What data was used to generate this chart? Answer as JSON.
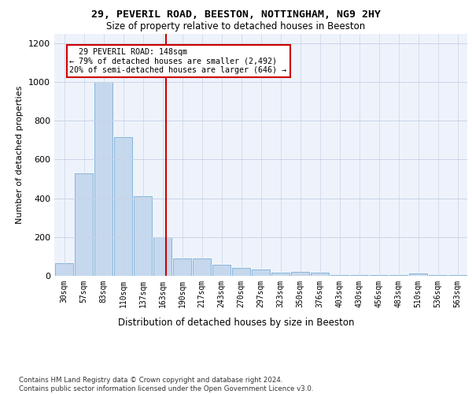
{
  "title_line1": "29, PEVERIL ROAD, BEESTON, NOTTINGHAM, NG9 2HY",
  "title_line2": "Size of property relative to detached houses in Beeston",
  "xlabel": "Distribution of detached houses by size in Beeston",
  "ylabel": "Number of detached properties",
  "footer": "Contains HM Land Registry data © Crown copyright and database right 2024.\nContains public sector information licensed under the Open Government Licence v3.0.",
  "categories": [
    "30sqm",
    "57sqm",
    "83sqm",
    "110sqm",
    "137sqm",
    "163sqm",
    "190sqm",
    "217sqm",
    "243sqm",
    "270sqm",
    "297sqm",
    "323sqm",
    "350sqm",
    "376sqm",
    "403sqm",
    "430sqm",
    "456sqm",
    "483sqm",
    "510sqm",
    "536sqm",
    "563sqm"
  ],
  "values": [
    65,
    530,
    1000,
    715,
    410,
    200,
    90,
    90,
    58,
    40,
    32,
    15,
    20,
    18,
    5,
    5,
    5,
    5,
    12,
    5,
    5
  ],
  "bar_color": "#c5d8ed",
  "bar_edge_color": "#7baed4",
  "vline_x": 5.18,
  "vline_color": "#cc0000",
  "annotation_text": "  29 PEVERIL ROAD: 148sqm\n← 79% of detached houses are smaller (2,492)\n20% of semi-detached houses are larger (646) →",
  "annotation_box_color": "#cc0000",
  "ylim": [
    0,
    1250
  ],
  "yticks": [
    0,
    200,
    400,
    600,
    800,
    1000,
    1200
  ],
  "background_color": "#eef3fb",
  "grid_color": "#c8d4e8"
}
